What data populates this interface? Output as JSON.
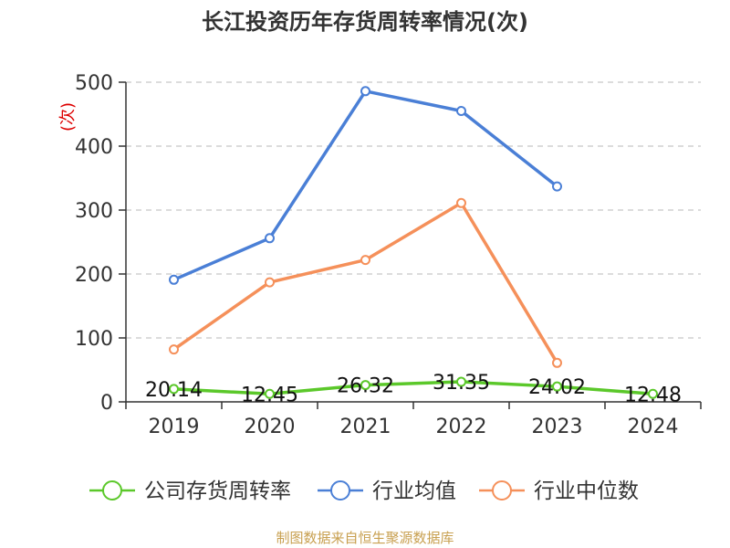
{
  "chart_data": {
    "type": "line",
    "title": "长江投资历年存货周转率情况(次)",
    "ylabel": "(次)",
    "xlabel": "",
    "categories": [
      "2019",
      "2020",
      "2021",
      "2022",
      "2023",
      "2024"
    ],
    "ylim": [
      0,
      500
    ],
    "yticks": [
      0,
      100,
      200,
      300,
      400,
      500
    ],
    "grid": true,
    "legend_position": "bottom",
    "series": [
      {
        "name": "公司存货周转率",
        "color": "#5bc82a",
        "values": [
          20.14,
          12.45,
          26.32,
          31.35,
          24.02,
          12.48
        ],
        "labels": [
          "20.14",
          "12.45",
          "26.32",
          "31.35",
          "24.02",
          "12.48"
        ]
      },
      {
        "name": "行业均值",
        "color": "#4a7fd6",
        "values": [
          191,
          256,
          486,
          455,
          337,
          null
        ]
      },
      {
        "name": "行业中位数",
        "color": "#f5905a",
        "values": [
          82,
          187,
          222,
          311,
          61,
          null
        ]
      }
    ]
  },
  "source_note": "制图数据来自恒生聚源数据库"
}
